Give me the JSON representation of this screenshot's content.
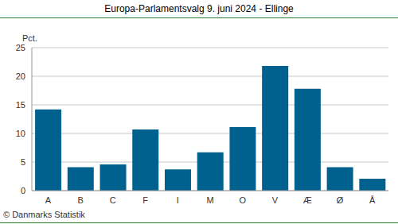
{
  "chart_data": {
    "type": "bar",
    "title": "Europa-Parlamentsvalg 9. juni 2024 - Ellinge",
    "y_label": "Pct.",
    "annotations": [
      "© Danmarks Statistik"
    ],
    "categories": [
      "A",
      "B",
      "C",
      "F",
      "I",
      "M",
      "O",
      "V",
      "Æ",
      "Ø",
      "Å"
    ],
    "values": [
      14.2,
      4.1,
      4.6,
      10.7,
      3.7,
      6.7,
      11.1,
      21.8,
      17.8,
      4.1,
      2.1
    ],
    "color": "#00618f",
    "ylim": [
      0,
      25
    ],
    "yticks": [
      0,
      5,
      10,
      15,
      20,
      25
    ],
    "grid": true
  }
}
